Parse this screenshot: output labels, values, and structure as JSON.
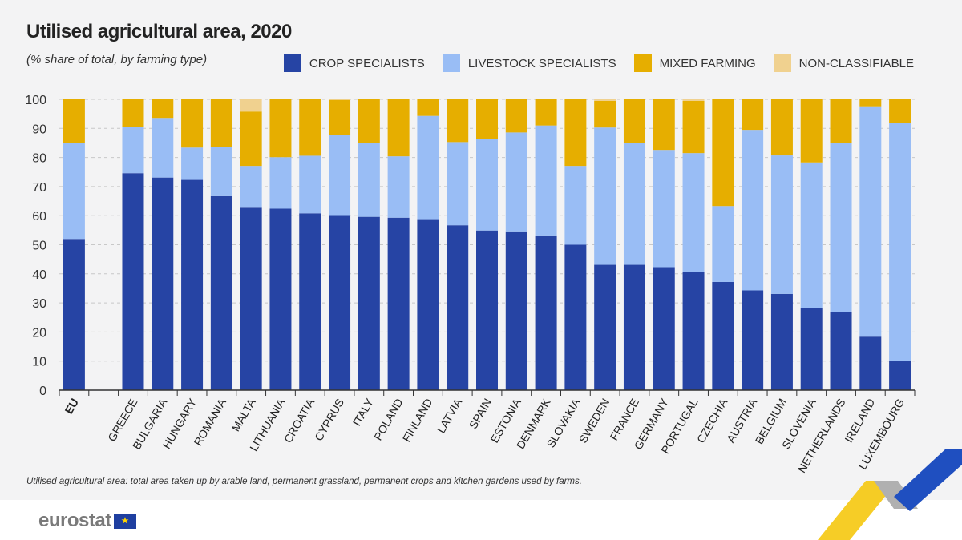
{
  "chart_data": {
    "type": "bar",
    "stacked": true,
    "title": "Utilised agricultural area, 2020",
    "subtitle": "(% share of total, by farming type)",
    "xlabel": "",
    "ylabel": "",
    "ylim": [
      0,
      100
    ],
    "yticks": [
      0,
      10,
      20,
      30,
      40,
      50,
      60,
      70,
      80,
      90,
      100
    ],
    "grid": true,
    "legend_position": "top-right",
    "categories": [
      "EU",
      "",
      "GREECE",
      "BULGARIA",
      "HUNGARY",
      "ROMANIA",
      "MALTA",
      "LITHUANIA",
      "CROATIA",
      "CYPRUS",
      "ITALY",
      "POLAND",
      "FINLAND",
      "LATVIA",
      "SPAIN",
      "ESTONIA",
      "DENMARK",
      "SLOVAKIA",
      "SWEDEN",
      "FRANCE",
      "GERMANY",
      "PORTUGAL",
      "CZECHIA",
      "AUSTRIA",
      "BELGIUM",
      "SLOVENIA",
      "NETHERLANDS",
      "IRELAND",
      "LUXEMBOURG"
    ],
    "series": [
      {
        "name": "CROP SPECIALISTS",
        "color": "#2644a4",
        "values": [
          52,
          null,
          74.6,
          73.1,
          72.3,
          66.7,
          63.0,
          62.4,
          60.8,
          60.2,
          59.6,
          59.3,
          58.8,
          56.7,
          54.9,
          54.6,
          53.2,
          50.0,
          43.1,
          43.1,
          42.3,
          40.5,
          37.2,
          34.3,
          33.1,
          28.2,
          26.8,
          18.4,
          10.2
        ]
      },
      {
        "name": "LIVESTOCK SPECIALISTS",
        "color": "#99bdf5",
        "values": [
          33,
          null,
          16.0,
          20.5,
          11.1,
          16.8,
          14.1,
          17.7,
          19.8,
          27.5,
          25.4,
          21.1,
          35.5,
          28.6,
          31.4,
          34.0,
          37.8,
          27.1,
          47.2,
          42.0,
          40.3,
          41.0,
          26.1,
          55.2,
          47.6,
          50.1,
          58.2,
          79.2,
          81.6
        ]
      },
      {
        "name": "MIXED FARMING",
        "color": "#e6ae00",
        "values": [
          15,
          null,
          9.4,
          6.4,
          16.6,
          16.5,
          18.7,
          19.9,
          19.4,
          12.1,
          15.0,
          19.6,
          5.7,
          14.7,
          13.7,
          11.4,
          9.0,
          22.9,
          9.2,
          14.9,
          17.4,
          18.0,
          36.7,
          10.5,
          19.3,
          21.7,
          15.0,
          2.4,
          8.2
        ]
      },
      {
        "name": "NON-CLASSIFIABLE",
        "color": "#f0d18f",
        "values": [
          0,
          null,
          0,
          0,
          0,
          0,
          4.2,
          0,
          0,
          0.2,
          0,
          0,
          0,
          0,
          0,
          0,
          0,
          0,
          0.5,
          0,
          0,
          0.5,
          0,
          0,
          0,
          0,
          0,
          0,
          0
        ]
      }
    ]
  },
  "footnote": "Utilised agricultural area: total area taken up by arable land, permanent grassland, permanent crops and kitchen gardens used by farms.",
  "logo_text": "eurostat"
}
